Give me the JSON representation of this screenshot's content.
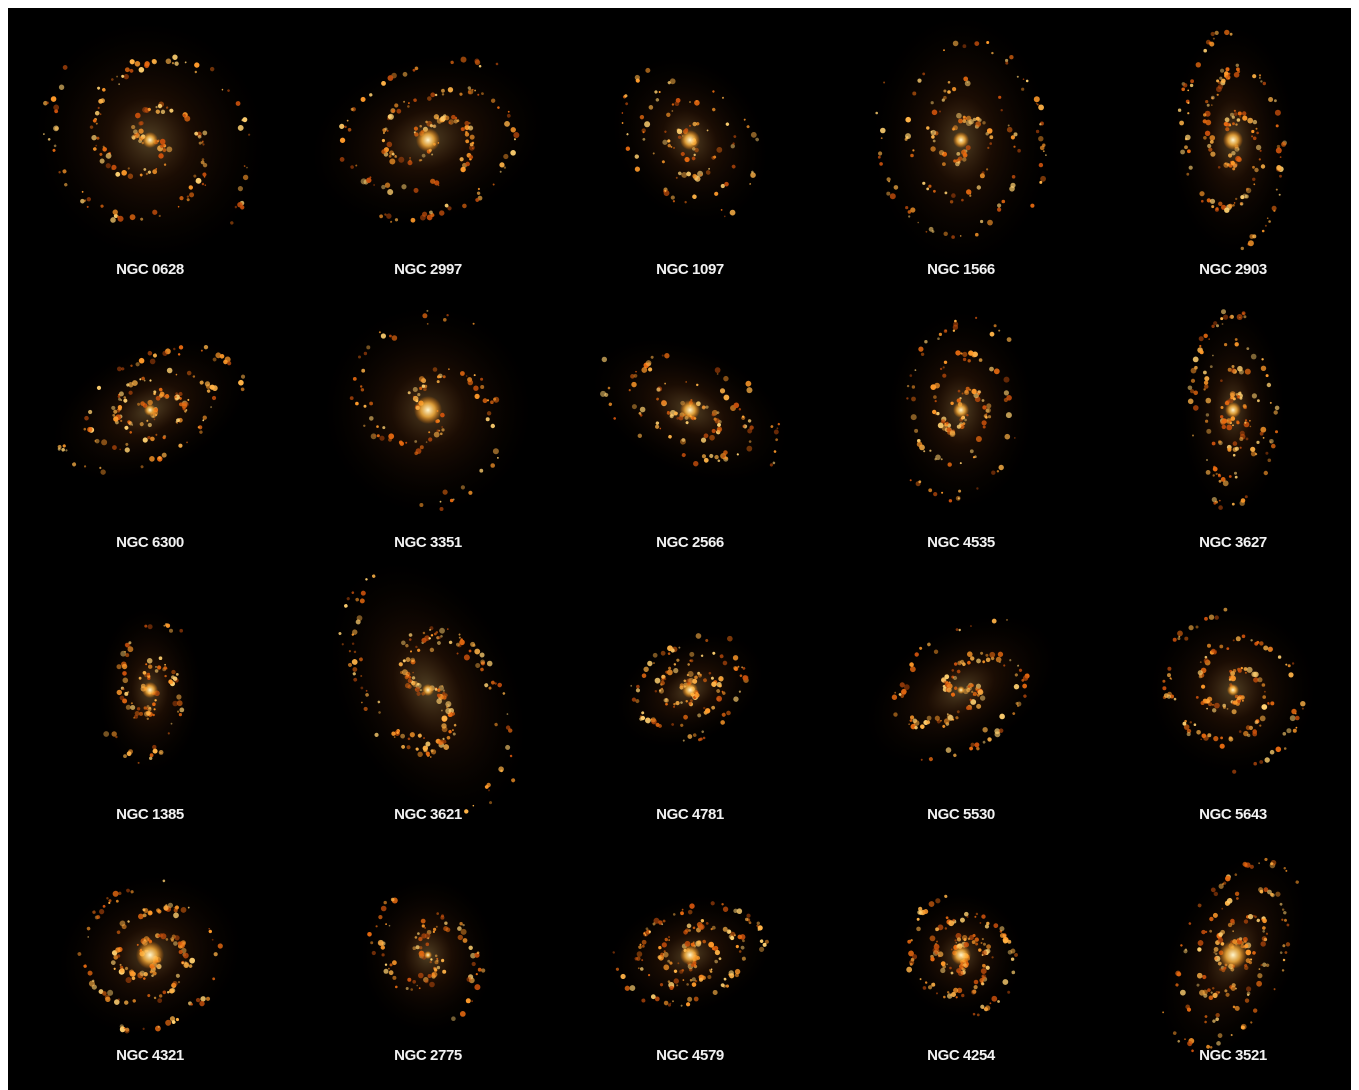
{
  "galaxies": [
    "NGC 0628",
    "NGC 2997",
    "NGC 1097",
    "NGC 1566",
    "NGC 2903",
    "NGC 6300",
    "NGC 3351",
    "NGC 2566",
    "NGC 4535",
    "NGC 3627",
    "NGC 1385",
    "NGC 3621",
    "NGC 4781",
    "NGC 5530",
    "NGC 5643",
    "NGC 4321",
    "NGC 2775",
    "NGC 4579",
    "NGC 4254",
    "NGC 3521"
  ]
}
